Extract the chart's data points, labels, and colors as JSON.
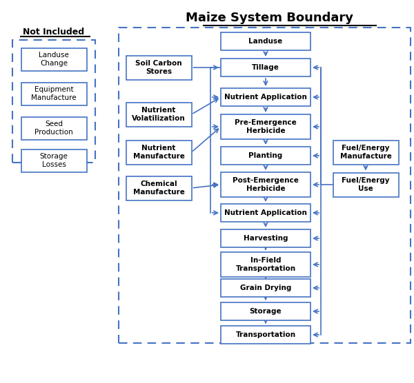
{
  "title": "Maize System Boundary",
  "bg_color": "#ffffff",
  "box_edge_color": "#4472c4",
  "box_face_color": "#ffffff",
  "arrow_color": "#4472c4",
  "dash_border_color": "#4472c4",
  "text_color": "#000000",
  "title_color": "#000000",
  "not_included_title": "Not Included",
  "not_included_boxes": [
    "Landuse\nChange",
    "Equipment\nManufacture",
    "Seed\nProduction",
    "Storage\nLosses"
  ],
  "left_side_boxes": [
    "Soil Carbon\nStores",
    "Nutrient\nVolatilization",
    "Nutrient\nManufacture",
    "Chemical\nManufacture"
  ],
  "main_chain": [
    "Landuse",
    "Tillage",
    "Nutrient Application",
    "Pre-Emergence\nHerbicide",
    "Planting",
    "Post-Emergence\nHerbicide",
    "Nutrient Application ",
    "Harvesting",
    "In-Field\nTransportation",
    "Grain Drying",
    "Storage",
    "Transportation"
  ],
  "right_side_boxes": [
    "Fuel/Energy\nManufacture",
    "Fuel/Energy\nUse"
  ]
}
